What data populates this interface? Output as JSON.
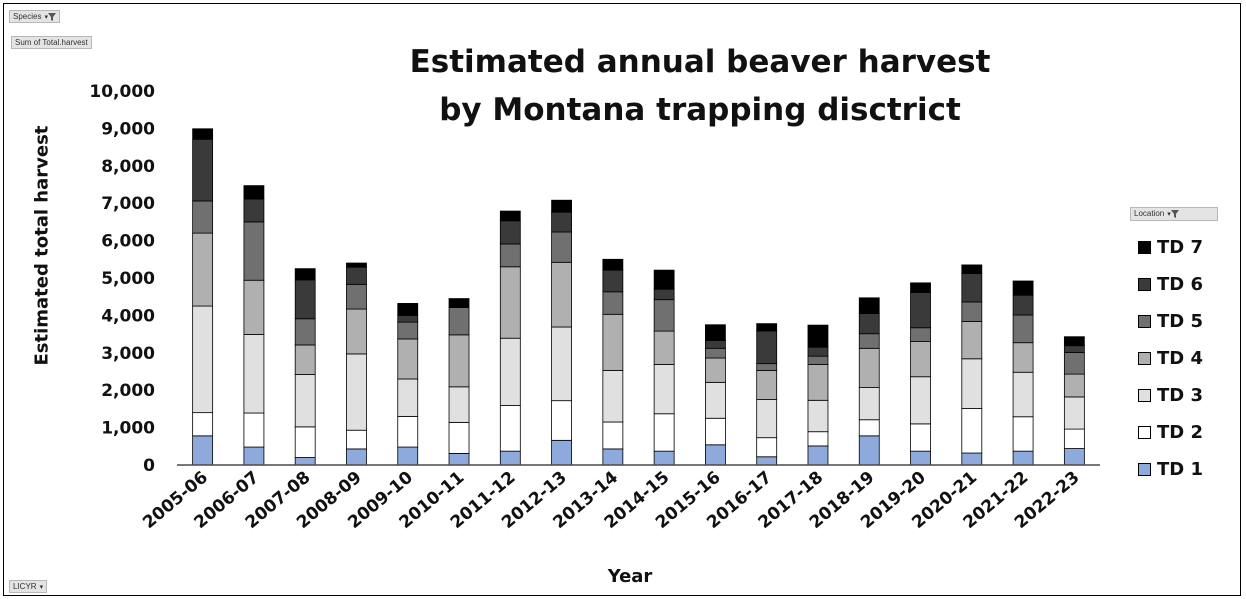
{
  "pivot": {
    "species_label": "Species",
    "sum_label": "Sum of Total.harvest",
    "licyr_label": "LICYR",
    "location_label": "Location"
  },
  "chart_data": {
    "type": "bar",
    "stacked": true,
    "title_line1": "Estimated annual beaver harvest",
    "title_line2": "by Montana trapping disctrict",
    "xlabel": "Year",
    "ylabel": "Estimated total harvest",
    "ylim": [
      0,
      10000
    ],
    "yticks": [
      "0",
      "1,000",
      "2,000",
      "3,000",
      "4,000",
      "5,000",
      "6,000",
      "7,000",
      "8,000",
      "9,000",
      "10,000"
    ],
    "grid": false,
    "legend_position": "right",
    "categories": [
      "2005-06",
      "2006-07",
      "2007-08",
      "2008-09",
      "2009-10",
      "2010-11",
      "2011-12",
      "2012-13",
      "2013-14",
      "2014-15",
      "2015-16",
      "2016-17",
      "2017-18",
      "2018-19",
      "2019-20",
      "2020-21",
      "2021-22",
      "2022-23"
    ],
    "series": [
      {
        "name": "TD 1",
        "color": "#8ea9db",
        "values": [
          780,
          480,
          200,
          430,
          480,
          310,
          370,
          660,
          430,
          370,
          540,
          220,
          510,
          780,
          370,
          320,
          370,
          440
        ]
      },
      {
        "name": "TD 2",
        "color": "#ffffff",
        "values": [
          620,
          910,
          820,
          500,
          820,
          830,
          1220,
          1060,
          720,
          1000,
          710,
          510,
          380,
          430,
          730,
          1190,
          920,
          520
        ]
      },
      {
        "name": "TD 3",
        "color": "#e0e0e0",
        "values": [
          2850,
          2100,
          1400,
          2040,
          1000,
          950,
          1800,
          1970,
          1380,
          1320,
          960,
          1020,
          840,
          860,
          1260,
          1330,
          1190,
          860
        ]
      },
      {
        "name": "TD 4",
        "color": "#b0b0b0",
        "values": [
          1950,
          1450,
          790,
          1200,
          1070,
          1390,
          1910,
          1730,
          1500,
          890,
          650,
          780,
          960,
          1050,
          940,
          1000,
          790,
          610
        ]
      },
      {
        "name": "TD 5",
        "color": "#707070",
        "values": [
          860,
          1560,
          700,
          660,
          450,
          730,
          610,
          810,
          600,
          840,
          260,
          180,
          220,
          390,
          370,
          520,
          740,
          580
        ]
      },
      {
        "name": "TD 6",
        "color": "#3a3a3a",
        "values": [
          1650,
          610,
          1040,
          460,
          180,
          0,
          620,
          530,
          580,
          280,
          210,
          870,
          240,
          540,
          940,
          760,
          530,
          180
        ]
      },
      {
        "name": "TD 7",
        "color": "#000000",
        "values": [
          280,
          360,
          300,
          110,
          320,
          240,
          260,
          320,
          290,
          510,
          420,
          200,
          590,
          420,
          260,
          230,
          380,
          240
        ]
      }
    ]
  }
}
